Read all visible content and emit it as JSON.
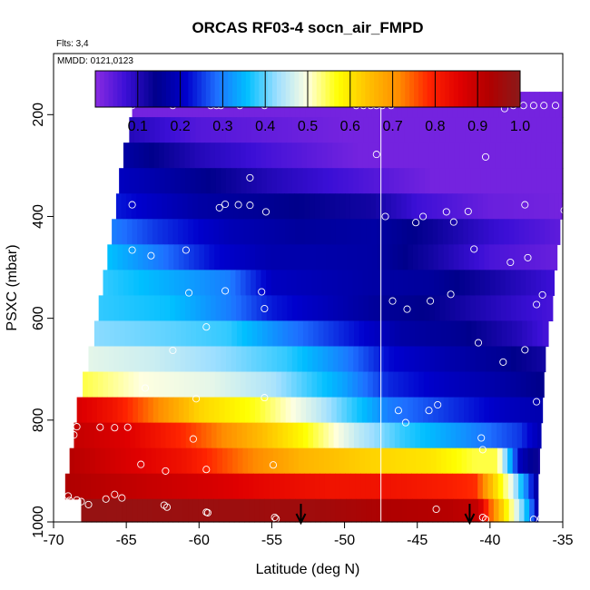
{
  "chart_data": {
    "type": "heatmap",
    "title": "ORCAS RF03-4 socn_air_FMPD",
    "info_lines": [
      "Flts: 3,4",
      "MMDD: 0121,0123"
    ],
    "xlabel": "Latitude (deg N)",
    "ylabel": "PSXC (mbar)",
    "xlim": [
      -70,
      -35
    ],
    "ylim": [
      1000,
      80
    ],
    "x_ticks": [
      -70,
      -65,
      -60,
      -55,
      -50,
      -45,
      -40,
      -35
    ],
    "y_ticks": [
      200,
      400,
      600,
      800,
      1000
    ],
    "colorbar": {
      "range": [
        0,
        1
      ],
      "ticks": [
        "0.1",
        "0.2",
        "0.3",
        "0.4",
        "0.5",
        "0.6",
        "0.7",
        "0.8",
        "0.9",
        "1.0"
      ],
      "colors": [
        "#8a2be2",
        "#3b0fd6",
        "#00008b",
        "#0000cd",
        "#1e6fff",
        "#00bfff",
        "#9fdfff",
        "#ffffe0",
        "#ffff00",
        "#ffc000",
        "#ff8c00",
        "#ff2400",
        "#e00000",
        "#b00000",
        "#8b1a1a"
      ]
    },
    "rows": [
      {
        "p": 180,
        "lat_min": -64.6,
        "lat_max": -35,
        "values": [
          [
            -64.6,
            0.02
          ],
          [
            -35,
            0.02
          ]
        ]
      },
      {
        "p": 230,
        "lat_min": -64.8,
        "lat_max": -35,
        "values": [
          [
            -64.8,
            0.1
          ],
          [
            -60,
            0.05
          ],
          [
            -50,
            0.02
          ],
          [
            -35,
            0.02
          ]
        ]
      },
      {
        "p": 280,
        "lat_min": -65.2,
        "lat_max": -35,
        "values": [
          [
            -65.2,
            0.17
          ],
          [
            -60,
            0.1
          ],
          [
            -55,
            0.06
          ],
          [
            -49,
            0.02
          ],
          [
            -35,
            0.02
          ]
        ]
      },
      {
        "p": 330,
        "lat_min": -65.5,
        "lat_max": -35,
        "values": [
          [
            -65.5,
            0.2
          ],
          [
            -60,
            0.15
          ],
          [
            -55,
            0.1
          ],
          [
            -48,
            0.05
          ],
          [
            -44,
            0.02
          ],
          [
            -35,
            0.02
          ]
        ]
      },
      {
        "p": 380,
        "lat_min": -65.7,
        "lat_max": -35,
        "values": [
          [
            -65.7,
            0.23
          ],
          [
            -60,
            0.17
          ],
          [
            -55,
            0.15
          ],
          [
            -48,
            0.12
          ],
          [
            -45,
            0.07
          ],
          [
            -40,
            0.03
          ],
          [
            -35,
            0.02
          ]
        ]
      },
      {
        "p": 430,
        "lat_min": -66,
        "lat_max": -35.2,
        "values": [
          [
            -66,
            0.3
          ],
          [
            -63,
            0.25
          ],
          [
            -58,
            0.19
          ],
          [
            -53,
            0.16
          ],
          [
            -48,
            0.17
          ],
          [
            -44,
            0.13
          ],
          [
            -40,
            0.08
          ],
          [
            -35.2,
            0.04
          ]
        ]
      },
      {
        "p": 480,
        "lat_min": -66.3,
        "lat_max": -35.4,
        "values": [
          [
            -66.3,
            0.36
          ],
          [
            -63,
            0.3
          ],
          [
            -59,
            0.22
          ],
          [
            -55,
            0.18
          ],
          [
            -48,
            0.17
          ],
          [
            -44,
            0.12
          ],
          [
            -40,
            0.06
          ],
          [
            -35.4,
            0.03
          ]
        ]
      },
      {
        "p": 530,
        "lat_min": -66.6,
        "lat_max": -35.6,
        "values": [
          [
            -66.6,
            0.38
          ],
          [
            -62,
            0.34
          ],
          [
            -58,
            0.3
          ],
          [
            -55,
            0.2
          ],
          [
            -48,
            0.17
          ],
          [
            -44,
            0.16
          ],
          [
            -40,
            0.12
          ],
          [
            -35.6,
            0.07
          ]
        ]
      },
      {
        "p": 580,
        "lat_min": -66.9,
        "lat_max": -35.7,
        "values": [
          [
            -66.9,
            0.38
          ],
          [
            -62,
            0.36
          ],
          [
            -58,
            0.3
          ],
          [
            -55,
            0.23
          ],
          [
            -48,
            0.16
          ],
          [
            -44,
            0.14
          ],
          [
            -40,
            0.1
          ],
          [
            -35.7,
            0.06
          ]
        ]
      },
      {
        "p": 630,
        "lat_min": -67.2,
        "lat_max": -36,
        "values": [
          [
            -67.2,
            0.42
          ],
          [
            -62,
            0.4
          ],
          [
            -58,
            0.38
          ],
          [
            -54,
            0.3
          ],
          [
            -49,
            0.22
          ],
          [
            -46,
            0.17
          ],
          [
            -42,
            0.15
          ],
          [
            -38,
            0.1
          ],
          [
            -36,
            0.06
          ]
        ]
      },
      {
        "p": 680,
        "lat_min": -67.6,
        "lat_max": -36.2,
        "values": [
          [
            -67.6,
            0.48
          ],
          [
            -63,
            0.46
          ],
          [
            -58,
            0.42
          ],
          [
            -54,
            0.38
          ],
          [
            -50,
            0.3
          ],
          [
            -47,
            0.22
          ],
          [
            -43,
            0.18
          ],
          [
            -39,
            0.15
          ],
          [
            -36.2,
            0.12
          ]
        ]
      },
      {
        "p": 730,
        "lat_min": -68,
        "lat_max": -36.3,
        "values": [
          [
            -68,
            0.55
          ],
          [
            -64,
            0.5
          ],
          [
            -59,
            0.48
          ],
          [
            -55,
            0.44
          ],
          [
            -50,
            0.33
          ],
          [
            -47,
            0.24
          ],
          [
            -43,
            0.2
          ],
          [
            -39,
            0.17
          ],
          [
            -36.3,
            0.14
          ]
        ]
      },
      {
        "p": 780,
        "lat_min": -68.4,
        "lat_max": -36.4,
        "values": [
          [
            -68.4,
            0.87
          ],
          [
            -66,
            0.82
          ],
          [
            -63,
            0.72
          ],
          [
            -60,
            0.62
          ],
          [
            -56,
            0.56
          ],
          [
            -52,
            0.46
          ],
          [
            -47,
            0.3
          ],
          [
            -43,
            0.25
          ],
          [
            -39,
            0.2
          ],
          [
            -36.4,
            0.18
          ]
        ]
      },
      {
        "p": 830,
        "lat_min": -68.6,
        "lat_max": -36.5,
        "values": [
          [
            -68.6,
            0.9
          ],
          [
            -65,
            0.86
          ],
          [
            -61,
            0.78
          ],
          [
            -57,
            0.68
          ],
          [
            -53,
            0.58
          ],
          [
            -49,
            0.45
          ],
          [
            -46,
            0.38
          ],
          [
            -42,
            0.32
          ],
          [
            -38,
            0.25
          ],
          [
            -36.5,
            0.18
          ]
        ]
      },
      {
        "p": 880,
        "lat_min": -68.9,
        "lat_max": -36.6,
        "values": [
          [
            -68.9,
            0.92
          ],
          [
            -66,
            0.88
          ],
          [
            -61,
            0.82
          ],
          [
            -57,
            0.73
          ],
          [
            -53,
            0.66
          ],
          [
            -48,
            0.62
          ],
          [
            -44,
            0.6
          ],
          [
            -41,
            0.55
          ],
          [
            -39.5,
            0.55
          ],
          [
            -38,
            0.2
          ],
          [
            -36.6,
            0.12
          ]
        ]
      },
      {
        "p": 930,
        "lat_min": -69.2,
        "lat_max": -36.7,
        "values": [
          [
            -69.2,
            0.93
          ],
          [
            -64,
            0.9
          ],
          [
            -59,
            0.87
          ],
          [
            -55,
            0.84
          ],
          [
            -51,
            0.82
          ],
          [
            -47,
            0.82
          ],
          [
            -43,
            0.8
          ],
          [
            -41,
            0.78
          ],
          [
            -39.5,
            0.6
          ],
          [
            -38.5,
            0.48
          ],
          [
            -37.5,
            0.3
          ],
          [
            -36.7,
            0.15
          ]
        ]
      },
      {
        "p": 980,
        "lat_min": -68.1,
        "lat_max": -36.7,
        "values": [
          [
            -68.1,
            0.98
          ],
          [
            -60,
            0.97
          ],
          [
            -52,
            0.96
          ],
          [
            -47,
            0.93
          ],
          [
            -43,
            0.92
          ],
          [
            -40.8,
            0.9
          ],
          [
            -40,
            0.75
          ],
          [
            -39,
            0.6
          ],
          [
            -38,
            0.45
          ],
          [
            -37.2,
            0.3
          ],
          [
            -36.7,
            0.15
          ]
        ]
      }
    ],
    "vertical_line_lat": -47.5,
    "arrows_lat": [
      -53,
      -41.4
    ],
    "sample_points": [
      [
        -64.6,
        182
      ],
      [
        -61.8,
        182
      ],
      [
        -59.2,
        182
      ],
      [
        -58.8,
        182
      ],
      [
        -58.5,
        182
      ],
      [
        -57.2,
        182
      ],
      [
        -55.5,
        182
      ],
      [
        -49.2,
        182
      ],
      [
        -48.7,
        182
      ],
      [
        -48.2,
        182
      ],
      [
        -47.8,
        182
      ],
      [
        -47.4,
        182
      ],
      [
        -46.8,
        182
      ],
      [
        -39,
        188
      ],
      [
        -38.4,
        182
      ],
      [
        -37.7,
        182
      ],
      [
        -37,
        182
      ],
      [
        -36.3,
        182
      ],
      [
        -35.5,
        182
      ],
      [
        -47.8,
        278
      ],
      [
        -40.3,
        283
      ],
      [
        -56.5,
        324
      ],
      [
        -64.6,
        377
      ],
      [
        -58.6,
        383
      ],
      [
        -58.2,
        376
      ],
      [
        -57.3,
        377
      ],
      [
        -56.5,
        378
      ],
      [
        -55.4,
        391
      ],
      [
        -47.2,
        400
      ],
      [
        -44.6,
        400
      ],
      [
        -45.1,
        412
      ],
      [
        -43,
        391
      ],
      [
        -42.5,
        411
      ],
      [
        -41.5,
        390
      ],
      [
        -37.6,
        377
      ],
      [
        -34.9,
        388
      ],
      [
        -64.6,
        466
      ],
      [
        -63.3,
        477
      ],
      [
        -60.9,
        466
      ],
      [
        -41.1,
        464
      ],
      [
        -38.6,
        490
      ],
      [
        -37.4,
        481
      ],
      [
        -60.7,
        550
      ],
      [
        -58.2,
        546
      ],
      [
        -55.7,
        548
      ],
      [
        -55.5,
        581
      ],
      [
        -46.7,
        566
      ],
      [
        -45.7,
        582
      ],
      [
        -44.1,
        566
      ],
      [
        -42.7,
        553
      ],
      [
        -36.4,
        554
      ],
      [
        -36.8,
        573
      ],
      [
        -59.5,
        617
      ],
      [
        -40.8,
        648
      ],
      [
        -37.6,
        662
      ],
      [
        -39.1,
        686
      ],
      [
        -61.8,
        663
      ],
      [
        -63.7,
        737
      ],
      [
        -60.2,
        758
      ],
      [
        -55.5,
        756
      ],
      [
        -46.3,
        781
      ],
      [
        -45.8,
        805
      ],
      [
        -44.2,
        781
      ],
      [
        -43.6,
        770
      ],
      [
        -36.8,
        764
      ],
      [
        -68.6,
        829
      ],
      [
        -68.4,
        813
      ],
      [
        -66.8,
        814
      ],
      [
        -65.8,
        815
      ],
      [
        -64.9,
        814
      ],
      [
        -60.4,
        837
      ],
      [
        -64,
        887
      ],
      [
        -62.3,
        900
      ],
      [
        -59.5,
        897
      ],
      [
        -54.9,
        888
      ],
      [
        -40.6,
        835
      ],
      [
        -40.5,
        858
      ],
      [
        -69,
        949
      ],
      [
        -68.9,
        958
      ],
      [
        -68.4,
        957
      ],
      [
        -68.1,
        960
      ],
      [
        -67.6,
        966
      ],
      [
        -66.4,
        955
      ],
      [
        -65.8,
        946
      ],
      [
        -65.3,
        953
      ],
      [
        -62.4,
        967
      ],
      [
        -62.2,
        971
      ],
      [
        -59.5,
        981
      ],
      [
        -59.4,
        982
      ],
      [
        -54.8,
        991
      ],
      [
        -54.7,
        994
      ],
      [
        -43.7,
        975
      ],
      [
        -40.5,
        991
      ],
      [
        -40.3,
        995
      ],
      [
        -37,
        995
      ],
      [
        -36.5,
        993
      ],
      [
        -36.4,
        942
      ]
    ]
  }
}
